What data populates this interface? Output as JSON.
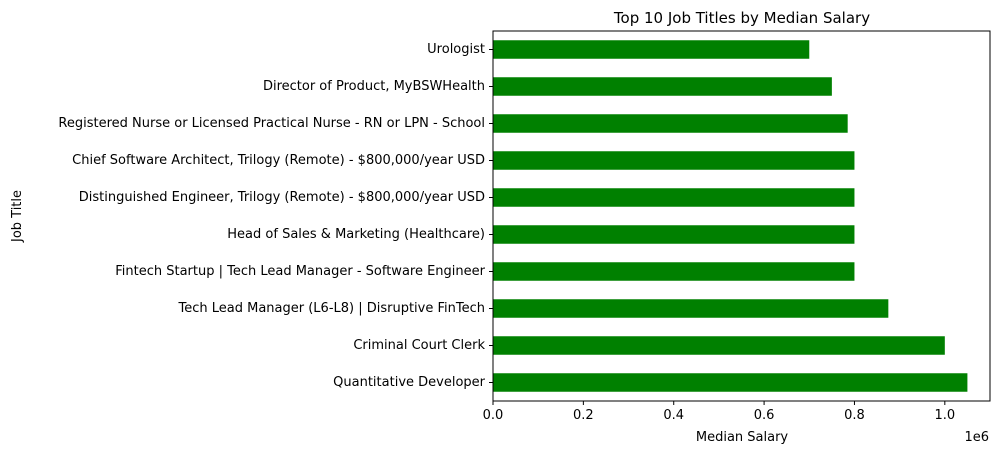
{
  "chart_data": {
    "type": "bar",
    "orientation": "horizontal",
    "title": "Top 10 Job Titles by Median Salary",
    "xlabel": "Median Salary",
    "ylabel": "Job Title",
    "x_offset_label": "1e6",
    "x_scale": 1000000,
    "xlim": [
      0,
      1100000
    ],
    "x_ticks": [
      0,
      200000,
      400000,
      600000,
      800000,
      1000000
    ],
    "x_tick_labels": [
      "0.0",
      "0.2",
      "0.4",
      "0.6",
      "0.8",
      "1.0"
    ],
    "grid": false,
    "bar_color": "#008000",
    "categories": [
      "Quantitative Developer",
      "Criminal Court Clerk",
      "Tech Lead Manager (L6-L8) | Disruptive FinTech",
      "Fintech Startup | Tech Lead Manager - Software Engineer",
      "Head of Sales & Marketing (Healthcare)",
      "Distinguished Engineer, Trilogy (Remote) - $800,000/year USD",
      "Chief Software Architect, Trilogy (Remote) - $800,000/year USD",
      "Registered Nurse or Licensed Practical Nurse - RN or LPN - School",
      "Director of Product, MyBSWHealth",
      "Urologist"
    ],
    "values": [
      1050000,
      1000000,
      875000,
      800000,
      800000,
      800000,
      800000,
      785000,
      750000,
      700000
    ]
  }
}
